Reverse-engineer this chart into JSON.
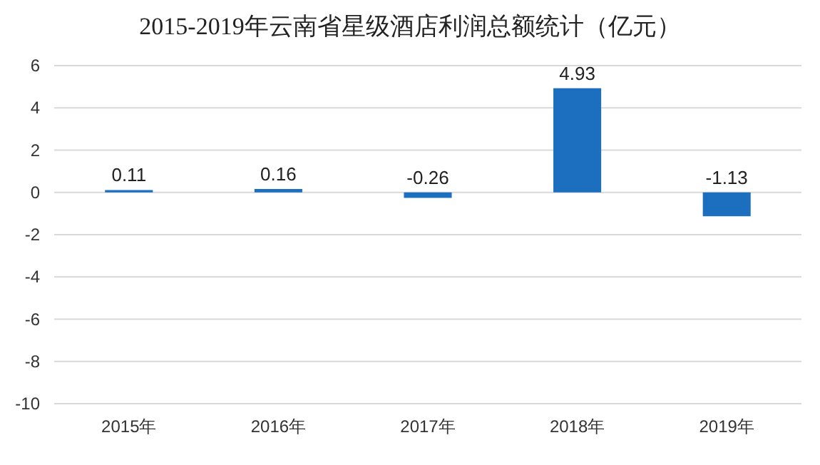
{
  "chart_data": {
    "type": "bar",
    "title": "2015-2019年云南省星级酒店利润总额统计（亿元）",
    "categories": [
      "2015年",
      "2016年",
      "2017年",
      "2018年",
      "2019年"
    ],
    "values": [
      0.11,
      0.16,
      -0.26,
      4.93,
      -1.13
    ],
    "color": "#1c6fbf",
    "ylim": [
      -10,
      6
    ],
    "yticks": [
      -10,
      -8,
      -6,
      -4,
      -2,
      0,
      2,
      4,
      6
    ],
    "grid": "y",
    "data_labels": true
  }
}
